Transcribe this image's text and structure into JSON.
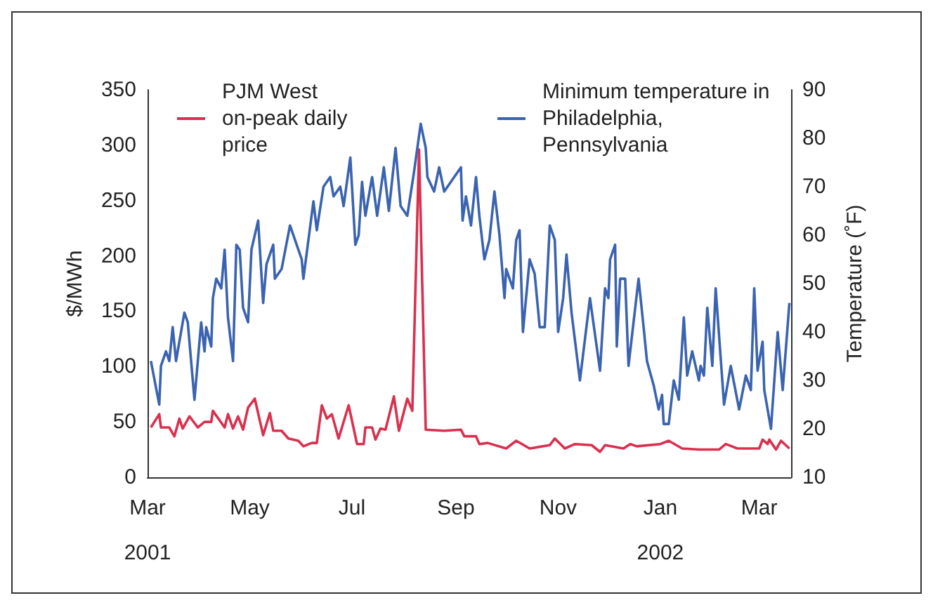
{
  "chart_data": {
    "type": "line",
    "ylabel": "$/MWh",
    "y2label": "Temperature (˚F)",
    "xlim": [
      "2001-03-01",
      "2002-03-20"
    ],
    "xticks": [
      {
        "value": "2001-03-01",
        "label": "Mar\n2001"
      },
      {
        "value": "2001-05-01",
        "label": "May"
      },
      {
        "value": "2001-07-01",
        "label": "Jul"
      },
      {
        "value": "2001-09-01",
        "label": "Sep"
      },
      {
        "value": "2001-11-01",
        "label": "Nov"
      },
      {
        "value": "2002-01-01",
        "label": "Jan\n2002"
      },
      {
        "value": "2002-03-01",
        "label": "Mar"
      }
    ],
    "ylim": [
      0,
      350
    ],
    "yticks": [
      0,
      50,
      100,
      150,
      200,
      250,
      300,
      350
    ],
    "y2lim": [
      10,
      90
    ],
    "y2ticks": [
      10,
      20,
      30,
      40,
      50,
      60,
      70,
      80,
      90
    ],
    "grid": false,
    "legend": "top",
    "line_style": "solid",
    "marker": "none",
    "series": [
      {
        "name": "PJM West on-peak daily price",
        "color": "#d9304e",
        "x": [
          "2001-03-03",
          "2001-03-08",
          "2001-03-09",
          "2001-03-14",
          "2001-03-17",
          "2001-03-20",
          "2001-03-22",
          "2001-03-26",
          "2001-03-31",
          "2001-04-04",
          "2001-04-08",
          "2001-04-09",
          "2001-04-16",
          "2001-04-18",
          "2001-04-21",
          "2001-04-24",
          "2001-04-27",
          "2001-04-30",
          "2001-05-04",
          "2001-05-09",
          "2001-05-13",
          "2001-05-15",
          "2001-05-20",
          "2001-05-24",
          "2001-05-30",
          "2001-06-02",
          "2001-06-07",
          "2001-06-10",
          "2001-06-13",
          "2001-06-16",
          "2001-06-19",
          "2001-06-23",
          "2001-06-29",
          "2001-07-04",
          "2001-07-08",
          "2001-07-09",
          "2001-07-13",
          "2001-07-15",
          "2001-07-18",
          "2001-07-21",
          "2001-07-26",
          "2001-07-29",
          "2001-08-03",
          "2001-08-06",
          "2001-08-10",
          "2001-08-14",
          "2001-08-25",
          "2001-09-04",
          "2001-09-06",
          "2001-09-13",
          "2001-09-15",
          "2001-09-20",
          "2001-10-01",
          "2001-10-07",
          "2001-10-15",
          "2001-10-27",
          "2001-10-30",
          "2001-11-05",
          "2001-11-11",
          "2001-11-21",
          "2001-11-26",
          "2001-11-29",
          "2001-12-10",
          "2001-12-14",
          "2001-12-18",
          "2002-01-01",
          "2002-01-06",
          "2002-01-14",
          "2002-01-24",
          "2002-02-05",
          "2002-02-09",
          "2002-02-16",
          "2002-03-01",
          "2002-03-03",
          "2002-03-06",
          "2002-03-07",
          "2002-03-11",
          "2002-03-14",
          "2002-03-19"
        ],
        "values": [
          45,
          57,
          45,
          45,
          37,
          53,
          44,
          55,
          45,
          50,
          50,
          60,
          45,
          57,
          44,
          55,
          43,
          63,
          71,
          38,
          58,
          42,
          42,
          35,
          33,
          28,
          31,
          31,
          65,
          53,
          57,
          35,
          65,
          30,
          30,
          45,
          45,
          34,
          44,
          43,
          73,
          42,
          71,
          60,
          296,
          43,
          42,
          43,
          37,
          37,
          30,
          31,
          26,
          33,
          26,
          29,
          35,
          26,
          30,
          29,
          23,
          29,
          26,
          30,
          28,
          30,
          33,
          26,
          25,
          25,
          30,
          26,
          26,
          34,
          30,
          34,
          25,
          33,
          26
        ]
      },
      {
        "name": "Minimum temperature in Philadelphia, Pennsylvania",
        "color": "#3a63b0",
        "axis": "y2",
        "x": [
          "2001-03-03",
          "2001-03-08",
          "2001-03-09",
          "2001-03-12",
          "2001-03-14",
          "2001-03-16",
          "2001-03-18",
          "2001-03-23",
          "2001-03-25",
          "2001-03-29",
          "2001-04-02",
          "2001-04-04",
          "2001-04-05",
          "2001-04-08",
          "2001-04-09",
          "2001-04-11",
          "2001-04-14",
          "2001-04-16",
          "2001-04-18",
          "2001-04-21",
          "2001-04-23",
          "2001-04-25",
          "2001-04-27",
          "2001-04-30",
          "2001-05-02",
          "2001-05-06",
          "2001-05-09",
          "2001-05-11",
          "2001-05-15",
          "2001-05-16",
          "2001-05-20",
          "2001-05-25",
          "2001-06-01",
          "2001-06-02",
          "2001-06-08",
          "2001-06-10",
          "2001-06-14",
          "2001-06-18",
          "2001-06-20",
          "2001-06-24",
          "2001-06-26",
          "2001-06-30",
          "2001-07-03",
          "2001-07-05",
          "2001-07-07",
          "2001-07-09",
          "2001-07-13",
          "2001-07-16",
          "2001-07-20",
          "2001-07-23",
          "2001-07-27",
          "2001-07-30",
          "2001-08-03",
          "2001-08-07",
          "2001-08-11",
          "2001-08-14",
          "2001-08-15",
          "2001-08-19",
          "2001-08-22",
          "2001-08-25",
          "2001-08-31",
          "2001-09-04",
          "2001-09-05",
          "2001-09-07",
          "2001-09-10",
          "2001-09-13",
          "2001-09-15",
          "2001-09-18",
          "2001-09-21",
          "2001-09-24",
          "2001-09-27",
          "2001-09-30",
          "2001-10-01",
          "2001-10-05",
          "2001-10-07",
          "2001-10-09",
          "2001-10-11",
          "2001-10-15",
          "2001-10-18",
          "2001-10-21",
          "2001-10-24",
          "2001-10-27",
          "2001-10-30",
          "2001-11-01",
          "2001-11-04",
          "2001-11-06",
          "2001-11-09",
          "2001-11-14",
          "2001-11-20",
          "2001-11-26",
          "2001-11-29",
          "2001-12-01",
          "2001-12-02",
          "2001-12-05",
          "2001-12-06",
          "2001-12-08",
          "2001-12-11",
          "2001-12-13",
          "2001-12-19",
          "2001-12-22",
          "2001-12-24",
          "2001-12-28",
          "2001-12-31",
          "2002-01-02",
          "2002-01-03",
          "2002-01-06",
          "2002-01-09",
          "2002-01-12",
          "2002-01-15",
          "2002-01-17",
          "2002-01-20",
          "2002-01-24",
          "2002-01-25",
          "2002-01-27",
          "2002-01-29",
          "2002-02-01",
          "2002-02-03",
          "2002-02-08",
          "2002-02-12",
          "2002-02-17",
          "2002-02-21",
          "2002-02-24",
          "2002-02-26",
          "2002-02-28",
          "2002-03-03",
          "2002-03-04",
          "2002-03-08",
          "2002-03-12",
          "2002-03-15",
          "2002-03-19"
        ],
        "values": [
          34,
          25,
          33,
          36,
          34,
          41,
          34,
          44,
          42,
          26,
          42,
          36,
          41,
          37,
          47,
          51,
          49,
          57,
          43,
          34,
          58,
          57,
          45,
          42,
          57,
          63,
          46,
          54,
          58,
          51,
          53,
          62,
          55,
          51,
          67,
          61,
          70,
          72,
          68,
          70,
          66,
          76,
          58,
          60,
          71,
          64,
          72,
          64,
          74,
          65,
          78,
          66,
          64,
          73,
          83,
          78,
          72,
          69,
          74,
          69,
          72,
          74,
          63,
          68,
          62,
          72,
          64,
          55,
          59,
          69,
          60,
          47,
          53,
          49,
          59,
          61,
          40,
          55,
          52,
          41,
          41,
          62,
          59,
          40,
          47,
          56,
          44,
          30,
          47,
          32,
          49,
          47,
          55,
          58,
          37,
          51,
          51,
          33,
          51,
          41,
          34,
          29,
          24,
          27,
          21,
          21,
          30,
          26,
          43,
          31,
          36,
          30,
          33,
          31,
          45,
          33,
          49,
          25,
          33,
          24,
          31,
          28,
          49,
          32,
          38,
          28,
          20,
          40,
          28,
          46
        ]
      }
    ]
  }
}
